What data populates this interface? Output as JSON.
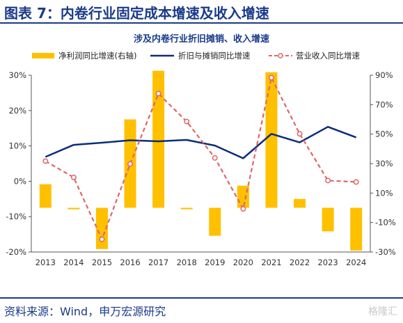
{
  "header": {
    "figure_title": "图表 7：内卷行业固定成本增速及收入增速"
  },
  "footer": {
    "source": "资料来源：Wind，申万宏源研究",
    "watermark": "格隆汇"
  },
  "colors": {
    "bar": "#ffc000",
    "line_depr": "#0d2d7a",
    "line_rev": "#e06666",
    "title": "#1a3a8a"
  },
  "chart_data": {
    "type": "bar",
    "title": "涉及内卷行业折旧摊销、收入增速",
    "categories": [
      "2013",
      "2014",
      "2015",
      "2016",
      "2017",
      "2018",
      "2019",
      "2020",
      "2021",
      "2022",
      "2023",
      "2024"
    ],
    "series": [
      {
        "name": "净利润同比增速(右轴)",
        "type": "bar",
        "axis": "right",
        "values": [
          16,
          -1,
          -28,
          60,
          93,
          -1,
          -19,
          15,
          92,
          6,
          -16,
          -29
        ]
      },
      {
        "name": "折旧与摊销同比增速",
        "type": "line",
        "axis": "left",
        "values": [
          6.9,
          10.3,
          10.9,
          11.6,
          11.3,
          11.7,
          10.1,
          6.5,
          13.4,
          11.0,
          15.4,
          12.4
        ]
      },
      {
        "name": "营业收入同比增速",
        "type": "line-dashed-marker",
        "axis": "left",
        "values": [
          5.7,
          1.1,
          -16.4,
          4.9,
          24.8,
          16.9,
          6.6,
          -7.8,
          29.3,
          13.4,
          0.2,
          -0.2
        ]
      }
    ],
    "y_left": {
      "min": -20,
      "max": 30,
      "ticks": [
        "-20%",
        "-10%",
        "0%",
        "10%",
        "20%",
        "30%"
      ]
    },
    "y_right": {
      "min": -30,
      "max": 90,
      "ticks": [
        "-30%",
        "-10%",
        "10%",
        "30%",
        "50%",
        "70%",
        "90%"
      ]
    },
    "grid": false,
    "legend_position": "top"
  }
}
